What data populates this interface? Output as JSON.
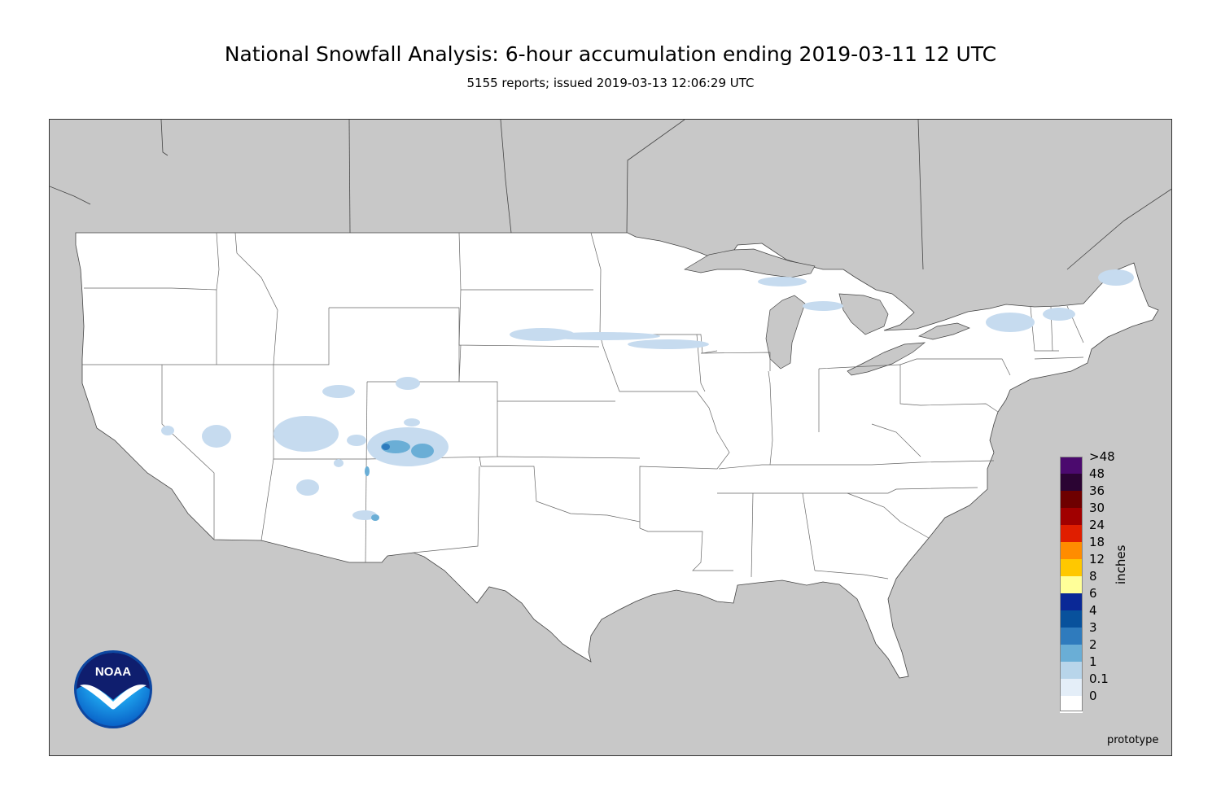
{
  "title": "National Snowfall Analysis: 6-hour accumulation ending 2019-03-11 12 UTC",
  "subtitle": "5155 reports; issued 2019-03-13 12:06:29 UTC",
  "units_label": "inches",
  "footer_label": "prototype",
  "logo_text": "NOAA",
  "legend": [
    {
      "label": ">48",
      "color": "#4b0a6e"
    },
    {
      "label": "48",
      "color": "#2b0433"
    },
    {
      "label": "36",
      "color": "#6e0000"
    },
    {
      "label": "30",
      "color": "#a10000"
    },
    {
      "label": "24",
      "color": "#e01e00"
    },
    {
      "label": "18",
      "color": "#ff8c00"
    },
    {
      "label": "12",
      "color": "#ffc800"
    },
    {
      "label": "8",
      "color": "#ffff99"
    },
    {
      "label": "6",
      "color": "#0a2896"
    },
    {
      "label": "4",
      "color": "#08519c"
    },
    {
      "label": "3",
      "color": "#2f7bbd"
    },
    {
      "label": "2",
      "color": "#6aaed6"
    },
    {
      "label": "1",
      "color": "#b8d5ea"
    },
    {
      "label": "0.1",
      "color": "#e4eef8"
    },
    {
      "label": "0",
      "color": "#ffffff"
    }
  ],
  "colors": {
    "land_outside": "#c8c8c8",
    "conus": "#ffffff",
    "water": "#c8c8c8",
    "boundary": "#555555"
  }
}
